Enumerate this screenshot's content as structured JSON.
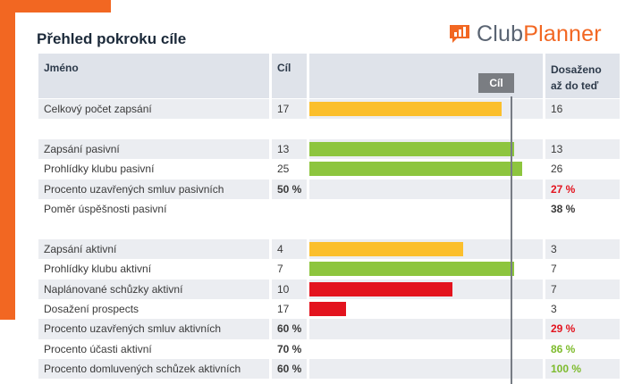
{
  "title": "Přehled pokroku cíle",
  "logo": {
    "part1": "Club",
    "part2": "Planner",
    "icon": "chart-bubble-icon"
  },
  "header": {
    "name": "Jméno",
    "goal": "Cíl",
    "goal_marker": "Cíl",
    "achieved_line1": "Dosaženo",
    "achieved_line2": "až do teď"
  },
  "colors": {
    "accent": "#f26722",
    "bar_yellow": "#fbbf2c",
    "bar_green": "#8dc53e",
    "bar_red": "#e3131e",
    "status_red": "#e3131e",
    "status_green": "#7dbb2c"
  },
  "rows": [
    {
      "name": "Celkový počet zapsání",
      "goal": "17",
      "achieved": "16",
      "progress": 0.94,
      "bar_color": "yellow"
    },
    {
      "name": "Zapsání pasivní",
      "goal": "13",
      "achieved": "13",
      "progress": 1.0,
      "bar_color": "green"
    },
    {
      "name": "Prohlídky klubu pasivní",
      "goal": "25",
      "achieved": "26",
      "progress": 1.04,
      "bar_color": "green"
    },
    {
      "name": "Procento uzavřených smluv pasivních",
      "goal": "50 %",
      "achieved": "27 %",
      "achieved_style": "red"
    },
    {
      "name": "Poměr úspěšnosti pasivní",
      "goal": "",
      "achieved": "38 %",
      "achieved_style": "bold"
    },
    {
      "name": "Zapsání aktivní",
      "goal": "4",
      "achieved": "3",
      "progress": 0.75,
      "bar_color": "yellow"
    },
    {
      "name": "Prohlídky klubu aktivní",
      "goal": "7",
      "achieved": "7",
      "progress": 1.0,
      "bar_color": "green"
    },
    {
      "name": "Naplánované schůzky aktivní",
      "goal": "10",
      "achieved": "7",
      "progress": 0.7,
      "bar_color": "red"
    },
    {
      "name": "Dosažení prospects",
      "goal": "17",
      "achieved": "3",
      "progress": 0.18,
      "bar_color": "red"
    },
    {
      "name": "Procento uzavřených smluv aktivních",
      "goal": "60 %",
      "achieved": "29 %",
      "achieved_style": "red"
    },
    {
      "name": "Procento účasti aktivní",
      "goal": "70 %",
      "achieved": "86 %",
      "achieved_style": "green"
    },
    {
      "name": "Procento domluvených schůzek aktivních",
      "goal": "60 %",
      "achieved": "100 %",
      "achieved_style": "green"
    }
  ]
}
